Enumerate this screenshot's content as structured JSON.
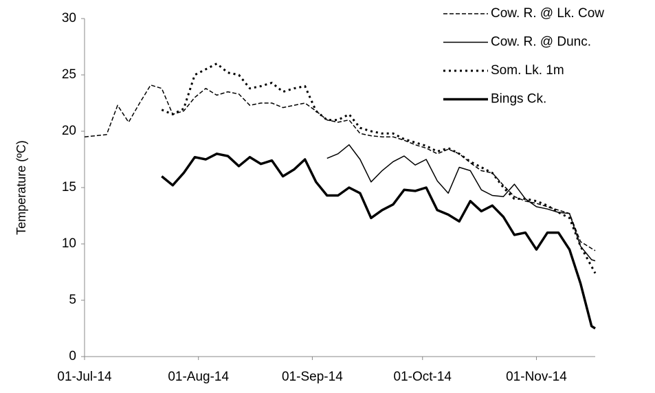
{
  "chart_data": {
    "type": "line",
    "y_label": "Temperature (ºC)",
    "x": [
      "2014-07-01",
      "2014-07-04",
      "2014-07-07",
      "2014-07-10",
      "2014-07-13",
      "2014-07-16",
      "2014-07-19",
      "2014-07-22",
      "2014-07-25",
      "2014-07-28",
      "2014-07-31",
      "2014-08-03",
      "2014-08-06",
      "2014-08-09",
      "2014-08-12",
      "2014-08-15",
      "2014-08-18",
      "2014-08-21",
      "2014-08-24",
      "2014-08-27",
      "2014-08-30",
      "2014-09-02",
      "2014-09-05",
      "2014-09-08",
      "2014-09-11",
      "2014-09-14",
      "2014-09-17",
      "2014-09-20",
      "2014-09-23",
      "2014-09-26",
      "2014-09-29",
      "2014-10-02",
      "2014-10-05",
      "2014-10-08",
      "2014-10-11",
      "2014-10-14",
      "2014-10-17",
      "2014-10-20",
      "2014-10-23",
      "2014-10-26",
      "2014-10-29",
      "2014-11-01",
      "2014-11-04",
      "2014-11-07",
      "2014-11-10",
      "2014-11-13",
      "2014-11-16",
      "2014-11-17"
    ],
    "series": [
      {
        "name": "Cow. R. @ Lk. Cow",
        "color": "#000000",
        "line_style": "dashed",
        "line_width": 1.5,
        "values": [
          19.5,
          19.6,
          19.7,
          22.3,
          20.8,
          22.5,
          24.1,
          23.8,
          21.5,
          21.8,
          23.0,
          23.8,
          23.2,
          23.5,
          23.3,
          22.3,
          22.5,
          22.5,
          22.1,
          22.3,
          22.5,
          21.8,
          21.0,
          20.8,
          21.0,
          19.8,
          19.6,
          19.5,
          19.5,
          19.2,
          18.8,
          18.5,
          18.0,
          18.4,
          18.0,
          17.2,
          16.5,
          16.3,
          15.2,
          14.2,
          13.8,
          13.6,
          13.3,
          13.0,
          12.7,
          10.2,
          9.6,
          9.4
        ]
      },
      {
        "name": "Cow. R. @ Dunc.",
        "color": "#000000",
        "line_style": "solid",
        "line_width": 1.5,
        "values": [
          null,
          null,
          null,
          null,
          null,
          null,
          null,
          null,
          null,
          null,
          null,
          null,
          null,
          null,
          null,
          null,
          null,
          null,
          null,
          null,
          null,
          null,
          17.6,
          18.0,
          18.8,
          17.5,
          15.5,
          16.5,
          17.3,
          17.8,
          17.0,
          17.5,
          15.6,
          14.5,
          16.8,
          16.5,
          14.8,
          14.3,
          14.2,
          15.3,
          14.0,
          13.3,
          13.1,
          12.8,
          12.7,
          9.8,
          8.6,
          8.5
        ]
      },
      {
        "name": "Som. Lk. 1m",
        "color": "#000000",
        "line_style": "dotted",
        "line_width": 3,
        "values": [
          null,
          null,
          null,
          null,
          null,
          null,
          null,
          21.9,
          21.5,
          22.0,
          25.0,
          25.5,
          26.0,
          25.2,
          25.0,
          23.8,
          24.0,
          24.3,
          23.5,
          23.8,
          24.0,
          21.8,
          21.0,
          21.0,
          21.5,
          20.3,
          20.0,
          19.8,
          19.8,
          19.3,
          19.0,
          18.7,
          18.2,
          18.5,
          18.0,
          17.3,
          16.8,
          16.3,
          15.0,
          14.0,
          14.0,
          13.8,
          13.4,
          12.8,
          12.3,
          9.8,
          8.0,
          7.4
        ]
      },
      {
        "name": "Bings Ck.",
        "color": "#000000",
        "line_style": "solid",
        "line_width": 3.5,
        "values": [
          null,
          null,
          null,
          null,
          null,
          null,
          null,
          16.0,
          15.2,
          16.3,
          17.7,
          17.5,
          18.0,
          17.8,
          16.9,
          17.7,
          17.1,
          17.4,
          16.0,
          16.6,
          17.5,
          15.5,
          14.3,
          14.3,
          15.0,
          14.5,
          12.3,
          13.0,
          13.5,
          14.8,
          14.7,
          15.0,
          13.0,
          12.6,
          12.0,
          13.8,
          12.9,
          13.4,
          12.4,
          10.8,
          11.0,
          9.5,
          11.0,
          11.0,
          9.5,
          6.5,
          2.7,
          2.5
        ]
      }
    ],
    "xlim": [
      "2014-07-01",
      "2014-11-17"
    ],
    "xticks": [
      {
        "value": "2014-07-01",
        "label": "01-Jul-14"
      },
      {
        "value": "2014-08-01",
        "label": "01-Aug-14"
      },
      {
        "value": "2014-09-01",
        "label": "01-Sep-14"
      },
      {
        "value": "2014-10-01",
        "label": "01-Oct-14"
      },
      {
        "value": "2014-11-01",
        "label": "01-Nov-14"
      }
    ],
    "ylim": [
      0,
      30
    ],
    "yticks": [
      0,
      5,
      10,
      15,
      20,
      25,
      30
    ],
    "legend": "upper right"
  }
}
